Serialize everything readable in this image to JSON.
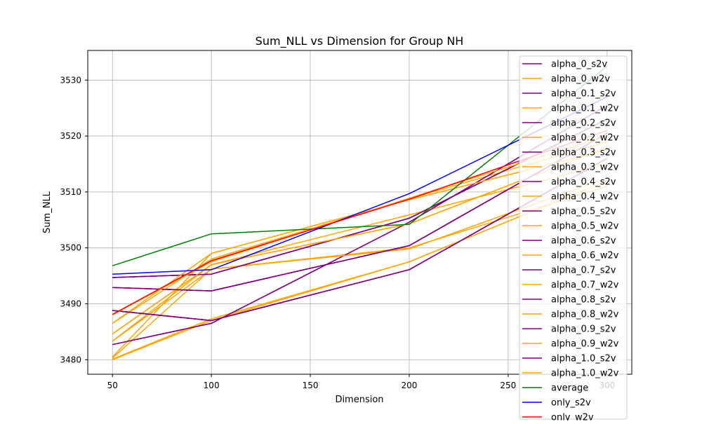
{
  "colors": {
    "s2v": "#800080",
    "w2v": "#ffa500",
    "average": "#008000",
    "only_s2v": "#0000ff",
    "only_w2v": "#ff0000",
    "grid": "#b0b0b0",
    "axis": "#000000"
  },
  "chart_data": {
    "type": "line",
    "title": "Sum_NLL vs Dimension for Group NH",
    "xlabel": "Dimension",
    "ylabel": "Sum_NLL",
    "x": [
      50,
      100,
      200,
      300
    ],
    "xlim": [
      37.5,
      312.5
    ],
    "ylim": [
      3477.4,
      3535.3
    ],
    "xticks": [
      50,
      100,
      150,
      200,
      250,
      300
    ],
    "yticks": [
      3480,
      3490,
      3500,
      3510,
      3520,
      3530
    ],
    "grid": true,
    "legend_position": "upper right",
    "series": [
      {
        "name": "alpha_0_s2v",
        "color": "#800080",
        "values": [
          3494.7,
          3495.3,
          3505.3,
          3523.0
        ]
      },
      {
        "name": "alpha_0_w2v",
        "color": "#ffa500",
        "values": [
          3480.3,
          3496.2,
          3500.0,
          3511.0
        ]
      },
      {
        "name": "alpha_0.1_s2v",
        "color": "#800080",
        "values": [
          3492.9,
          3492.3,
          3500.4,
          3520.5
        ]
      },
      {
        "name": "alpha_0.1_w2v",
        "color": "#ffa500",
        "values": [
          3480.1,
          3487.3,
          3497.5,
          3512.0
        ]
      },
      {
        "name": "alpha_0.2_s2v",
        "color": "#800080",
        "values": [
          3488.8,
          3487.0,
          3496.1,
          3516.0
        ]
      },
      {
        "name": "alpha_0.2_w2v",
        "color": "#ffa500",
        "values": [
          3480.5,
          3499.0,
          3508.6,
          3517.5
        ]
      },
      {
        "name": "alpha_0.3_s2v",
        "color": "#800080",
        "values": [
          3482.7,
          3486.5,
          3504.6,
          3525.5
        ]
      },
      {
        "name": "alpha_0.3_w2v",
        "color": "#ffa500",
        "values": [
          3483.3,
          3497.0,
          3505.9,
          3515.0
        ]
      },
      {
        "name": "alpha_0.4_s2v",
        "color": "#800080",
        "values": [
          3494.7,
          3495.3,
          3505.3,
          3523.0
        ]
      },
      {
        "name": "alpha_0.4_w2v",
        "color": "#ffa500",
        "values": [
          3484.6,
          3497.0,
          3504.3,
          3518.0
        ]
      },
      {
        "name": "alpha_0.5_s2v",
        "color": "#800080",
        "values": [
          3492.9,
          3492.3,
          3500.4,
          3520.5
        ]
      },
      {
        "name": "alpha_0.5_w2v",
        "color": "#ffa500",
        "values": [
          3486.5,
          3498.0,
          3508.8,
          3519.0
        ]
      },
      {
        "name": "alpha_0.6_s2v",
        "color": "#800080",
        "values": [
          3488.8,
          3487.0,
          3496.1,
          3516.0
        ]
      },
      {
        "name": "alpha_0.6_w2v",
        "color": "#ffa500",
        "values": [
          3480.0,
          3487.0,
          3497.5,
          3512.0
        ]
      },
      {
        "name": "alpha_0.7_s2v",
        "color": "#800080",
        "values": [
          3482.7,
          3486.5,
          3504.6,
          3525.5
        ]
      },
      {
        "name": "alpha_0.7_w2v",
        "color": "#ffa500",
        "values": [
          3483.3,
          3496.2,
          3499.8,
          3512.5
        ]
      },
      {
        "name": "alpha_0.8_s2v",
        "color": "#800080",
        "values": [
          3494.7,
          3495.3,
          3505.3,
          3523.0
        ]
      },
      {
        "name": "alpha_0.8_w2v",
        "color": "#ffa500",
        "values": [
          3484.6,
          3497.0,
          3504.3,
          3518.0
        ]
      },
      {
        "name": "alpha_0.9_s2v",
        "color": "#800080",
        "values": [
          3492.9,
          3492.3,
          3500.4,
          3520.5
        ]
      },
      {
        "name": "alpha_0.9_w2v",
        "color": "#ffa500",
        "values": [
          3486.5,
          3499.0,
          3508.6,
          3517.5
        ]
      },
      {
        "name": "alpha_1.0_s2v",
        "color": "#800080",
        "values": [
          3488.8,
          3487.0,
          3496.1,
          3516.0
        ]
      },
      {
        "name": "alpha_1.0_w2v",
        "color": "#ffa500",
        "values": [
          3488.0,
          3497.5,
          3508.9,
          3520.0
        ]
      },
      {
        "name": "average",
        "color": "#008000",
        "values": [
          3496.8,
          3502.5,
          3504.2,
          3532.5
        ]
      },
      {
        "name": "only_s2v",
        "color": "#0000ff",
        "values": [
          3495.3,
          3496.1,
          3509.7,
          3527.0
        ]
      },
      {
        "name": "only_w2v",
        "color": "#ff0000",
        "values": [
          3488.1,
          3497.7,
          3508.7,
          3521.0
        ]
      }
    ]
  }
}
